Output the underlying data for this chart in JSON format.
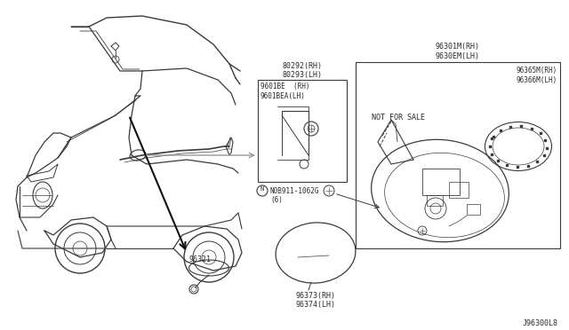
{
  "bg_color": "#ffffff",
  "diagram_id": "J96300L8",
  "line_color": "#3a3a3a",
  "text_color": "#2a2a2a",
  "labels": {
    "rearview_mirror": "96321",
    "mirror_glass_rh": "96373(RH)",
    "mirror_glass_lh": "96374(LH)",
    "door_mirror_assy_rh": "96301M(RH)",
    "door_mirror_assy_lh": "9630EM(LH)",
    "mirror_body_rh": "96365M(RH)",
    "mirror_body_lh": "96366M(LH)",
    "bracket_rh": "80292(RH)",
    "bracket_lh": "80293(LH)",
    "inner_mirror_rh": "9601BE  (RH)",
    "inner_mirror_lh": "9601BEA(LH)",
    "bolt": "N0B911-1062G",
    "bolt_qty": "(6)",
    "not_for_sale": "NOT FOR SALE"
  }
}
